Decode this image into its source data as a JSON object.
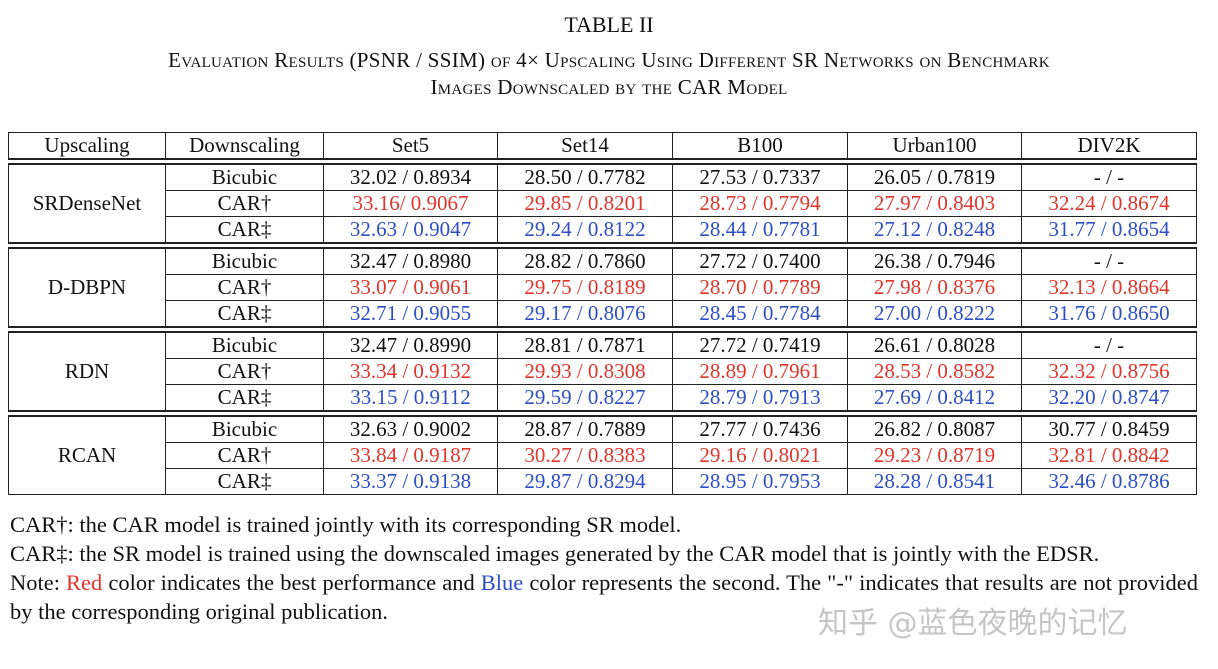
{
  "header": {
    "label": "TABLE II",
    "caption_line1": "Evaluation Results (PSNR / SSIM) of 4× Upscaling Using Different SR Networks on Benchmark",
    "caption_line2": "Images Downscaled by the CAR Model"
  },
  "table": {
    "columns": [
      "Upscaling",
      "Downscaling",
      "Set5",
      "Set14",
      "B100",
      "Urban100",
      "DIV2K"
    ],
    "groups": [
      {
        "name": "SRDenseNet",
        "rows": [
          {
            "downscaling": "Bicubic",
            "color": "#111111",
            "cells": [
              "32.02 / 0.8934",
              "28.50 / 0.7782",
              "27.53 / 0.7337",
              "26.05 / 0.7819",
              "- / -"
            ]
          },
          {
            "downscaling": "CAR†",
            "color": "#e0352b",
            "cells": [
              "33.16/ 0.9067",
              "29.85 / 0.8201",
              "28.73 / 0.7794",
              "27.97 / 0.8403",
              "32.24 / 0.8674"
            ]
          },
          {
            "downscaling": "CAR‡",
            "color": "#2d4fc4",
            "cells": [
              "32.63 / 0.9047",
              "29.24 / 0.8122",
              "28.44 / 0.7781",
              "27.12 / 0.8248",
              "31.77 / 0.8654"
            ]
          }
        ]
      },
      {
        "name": "D-DBPN",
        "rows": [
          {
            "downscaling": "Bicubic",
            "color": "#111111",
            "cells": [
              "32.47 / 0.8980",
              "28.82 / 0.7860",
              "27.72 / 0.7400",
              "26.38 / 0.7946",
              "- / -"
            ]
          },
          {
            "downscaling": "CAR†",
            "color": "#e0352b",
            "cells": [
              "33.07 / 0.9061",
              "29.75 / 0.8189",
              "28.70 / 0.7789",
              "27.98 / 0.8376",
              "32.13 / 0.8664"
            ]
          },
          {
            "downscaling": "CAR‡",
            "color": "#2d4fc4",
            "cells": [
              "32.71 / 0.9055",
              "29.17 / 0.8076",
              "28.45 / 0.7784",
              "27.00 / 0.8222",
              "31.76 / 0.8650"
            ]
          }
        ]
      },
      {
        "name": "RDN",
        "rows": [
          {
            "downscaling": "Bicubic",
            "color": "#111111",
            "cells": [
              "32.47 / 0.8990",
              "28.81 / 0.7871",
              "27.72 / 0.7419",
              "26.61 / 0.8028",
              "- / -"
            ]
          },
          {
            "downscaling": "CAR†",
            "color": "#e0352b",
            "cells": [
              "33.34 / 0.9132",
              "29.93 / 0.8308",
              "28.89 / 0.7961",
              "28.53 / 0.8582",
              "32.32 / 0.8756"
            ]
          },
          {
            "downscaling": "CAR‡",
            "color": "#2d4fc4",
            "cells": [
              "33.15 / 0.9112",
              "29.59 / 0.8227",
              "28.79 / 0.7913",
              "27.69 / 0.8412",
              "32.20 / 0.8747"
            ]
          }
        ]
      },
      {
        "name": "RCAN",
        "rows": [
          {
            "downscaling": "Bicubic",
            "color": "#111111",
            "cells": [
              "32.63 / 0.9002",
              "28.87 / 0.7889",
              "27.77 / 0.7436",
              "26.82 / 0.8087",
              "30.77 / 0.8459"
            ]
          },
          {
            "downscaling": "CAR†",
            "color": "#e0352b",
            "cells": [
              "33.84 / 0.9187",
              "30.27 / 0.8383",
              "29.16 / 0.8021",
              "29.23 / 0.8719",
              "32.81 / 0.8842"
            ]
          },
          {
            "downscaling": "CAR‡",
            "color": "#2d4fc4",
            "cells": [
              "33.37 / 0.9138",
              "29.87 / 0.8294",
              "28.95 / 0.7953",
              "28.28 / 0.8541",
              "32.46 / 0.8786"
            ]
          }
        ]
      }
    ]
  },
  "notes": {
    "car_dagger": "CAR†: the CAR model is trained jointly with its corresponding SR model.",
    "car_ddagger": "CAR‡: the SR model is trained using the downscaled images generated by the CAR model that is jointly with the EDSR.",
    "note": [
      "Note: ",
      "Red",
      " color indicates the best performance and ",
      "Blue",
      " color represents the second. The \"-\" indicates that results are not provided by the corresponding original publication."
    ]
  },
  "watermark": "知乎 @蓝色夜晚的记忆"
}
